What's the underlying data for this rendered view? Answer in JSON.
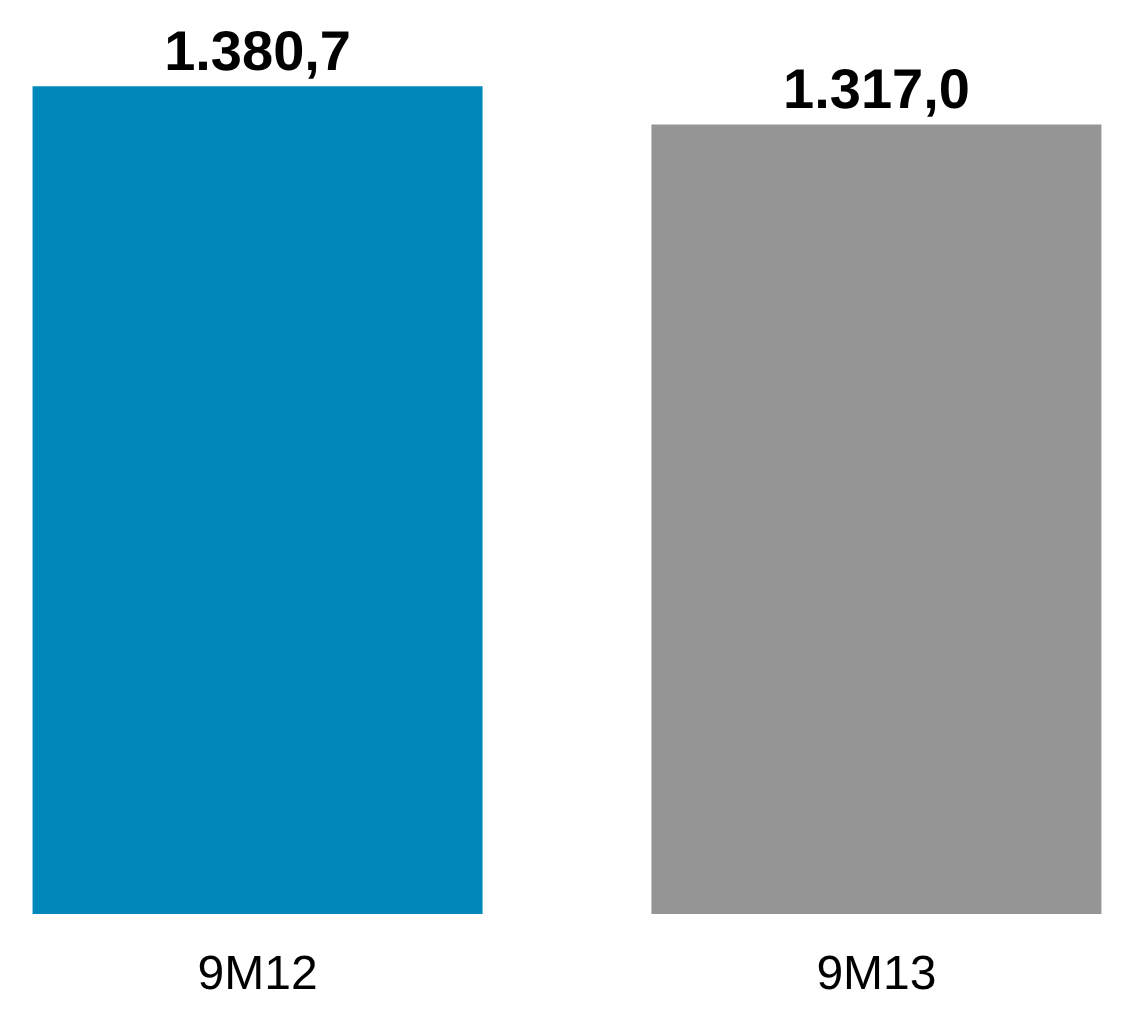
{
  "chart_data": {
    "type": "bar",
    "categories": [
      "9M12",
      "9M13"
    ],
    "values": [
      1380.7,
      1317.0
    ],
    "colors": [
      "#0088bb",
      "#959595"
    ],
    "value_labels": [
      "1.380,7",
      "1.317,0"
    ]
  }
}
